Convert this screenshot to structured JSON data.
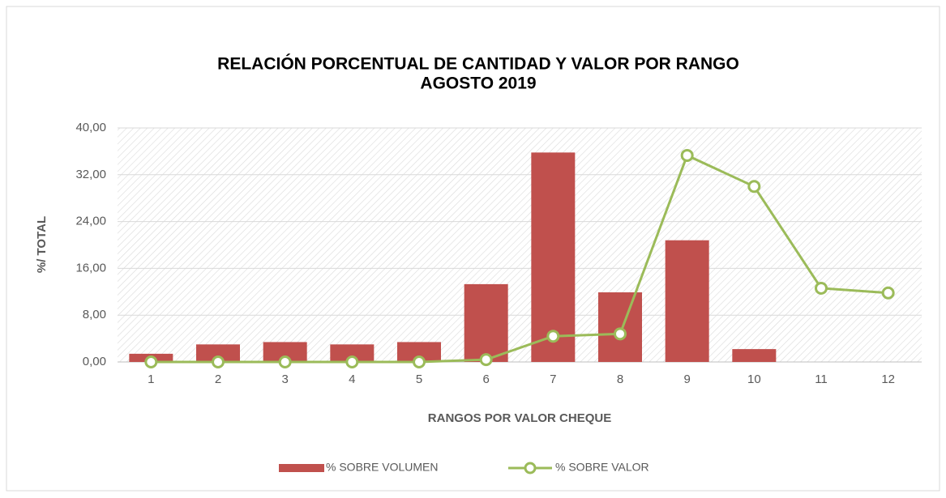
{
  "chart_data": {
    "type": "bar_line",
    "title": "RELACIÓN PORCENTUAL  DE CANTIDAD Y VALOR POR RANGO",
    "subtitle": "AGOSTO 2019",
    "y_label": "%/ TOTAL",
    "x_label": "RANGOS POR VALOR CHEQUE",
    "categories": [
      "1",
      "2",
      "3",
      "4",
      "5",
      "6",
      "7",
      "8",
      "9",
      "10",
      "11",
      "12"
    ],
    "series": [
      {
        "name": "% SOBRE VOLUMEN",
        "type": "bar",
        "color": "#c0504d",
        "values": [
          1.4,
          3.0,
          3.4,
          3.0,
          3.4,
          13.3,
          35.8,
          11.9,
          20.8,
          2.2,
          0,
          0
        ]
      },
      {
        "name": "% SOBRE VALOR",
        "type": "line",
        "color": "#9bbb59",
        "values": [
          0,
          0,
          0,
          0,
          0,
          0.4,
          4.4,
          4.8,
          35.3,
          30.0,
          12.6,
          11.8
        ]
      }
    ],
    "ylim": [
      0,
      40
    ],
    "yticks": [
      {
        "value": 0,
        "label": "0,00"
      },
      {
        "value": 8,
        "label": "8,00"
      },
      {
        "value": 16,
        "label": "16,00"
      },
      {
        "value": 24,
        "label": "24,00"
      },
      {
        "value": 32,
        "label": "32,00"
      },
      {
        "value": 40,
        "label": "40,00"
      }
    ],
    "grid": true,
    "legend": "bottom"
  }
}
